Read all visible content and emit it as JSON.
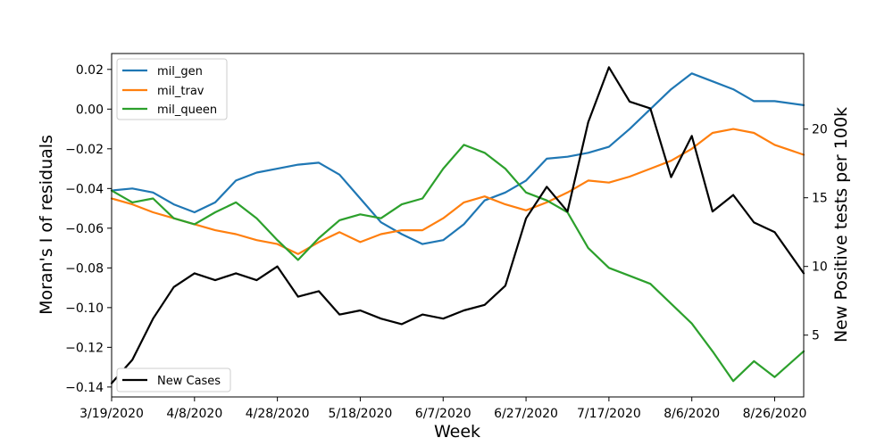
{
  "chart_data": {
    "type": "line",
    "xlabel": "Week",
    "ylabel_left": "Moran's I of residuals",
    "ylabel_right": "New Positive tests per 100k",
    "x_start_date": "2020-03-19",
    "x_end_date": "2020-09-02",
    "x_tick_labels": [
      "3/19/2020",
      "4/8/2020",
      "4/28/2020",
      "5/18/2020",
      "6/7/2020",
      "6/27/2020",
      "7/17/2020",
      "8/6/2020",
      "8/26/2020"
    ],
    "ylim_left": [
      -0.145,
      0.028
    ],
    "y_ticks_left": [
      0.02,
      0.0,
      -0.02,
      -0.04,
      -0.06,
      -0.08,
      -0.1,
      -0.12,
      -0.14
    ],
    "y_tick_labels_left": [
      "0.02",
      "0.00",
      "−0.02",
      "−0.04",
      "−0.06",
      "−0.08",
      "−0.10",
      "−0.12",
      "−0.14"
    ],
    "ylim_right": [
      0.5,
      25.5
    ],
    "y_ticks_right": [
      5,
      10,
      15,
      20
    ],
    "y_tick_labels_right": [
      "5",
      "10",
      "15",
      "20"
    ],
    "legend_top_left": {
      "position": "top-left",
      "entries": [
        "mil_gen",
        "mil_trav",
        "mil_queen"
      ]
    },
    "legend_bottom_left": {
      "position": "bottom-left",
      "entries": [
        "New Cases"
      ]
    },
    "grid": false,
    "colors": {
      "mil_gen": "#1f77b4",
      "mil_trav": "#ff7f0e",
      "mil_queen": "#2ca02c",
      "New Cases": "#000000"
    },
    "series": [
      {
        "name": "mil_gen",
        "axis": "left",
        "points": [
          [
            "2020-03-19",
            -0.041
          ],
          [
            "2020-03-24",
            -0.04
          ],
          [
            "2020-03-29",
            -0.042
          ],
          [
            "2020-04-03",
            -0.048
          ],
          [
            "2020-04-08",
            -0.052
          ],
          [
            "2020-04-13",
            -0.047
          ],
          [
            "2020-04-18",
            -0.036
          ],
          [
            "2020-04-23",
            -0.032
          ],
          [
            "2020-04-28",
            -0.03
          ],
          [
            "2020-05-03",
            -0.028
          ],
          [
            "2020-05-08",
            -0.027
          ],
          [
            "2020-05-13",
            -0.033
          ],
          [
            "2020-05-18",
            -0.045
          ],
          [
            "2020-05-23",
            -0.057
          ],
          [
            "2020-05-28",
            -0.063
          ],
          [
            "2020-06-02",
            -0.068
          ],
          [
            "2020-06-07",
            -0.066
          ],
          [
            "2020-06-12",
            -0.058
          ],
          [
            "2020-06-17",
            -0.046
          ],
          [
            "2020-06-22",
            -0.042
          ],
          [
            "2020-06-27",
            -0.036
          ],
          [
            "2020-07-02",
            -0.025
          ],
          [
            "2020-07-07",
            -0.024
          ],
          [
            "2020-07-12",
            -0.022
          ],
          [
            "2020-07-17",
            -0.019
          ],
          [
            "2020-07-22",
            -0.01
          ],
          [
            "2020-07-27",
            0.0
          ],
          [
            "2020-08-01",
            0.01
          ],
          [
            "2020-08-06",
            0.018
          ],
          [
            "2020-08-11",
            0.014
          ],
          [
            "2020-08-16",
            0.01
          ],
          [
            "2020-08-21",
            0.004
          ],
          [
            "2020-08-26",
            0.004
          ],
          [
            "2020-09-02",
            0.002
          ]
        ]
      },
      {
        "name": "mil_trav",
        "axis": "left",
        "points": [
          [
            "2020-03-19",
            -0.045
          ],
          [
            "2020-03-24",
            -0.048
          ],
          [
            "2020-03-29",
            -0.052
          ],
          [
            "2020-04-03",
            -0.055
          ],
          [
            "2020-04-08",
            -0.058
          ],
          [
            "2020-04-13",
            -0.061
          ],
          [
            "2020-04-18",
            -0.063
          ],
          [
            "2020-04-23",
            -0.066
          ],
          [
            "2020-04-28",
            -0.068
          ],
          [
            "2020-05-03",
            -0.073
          ],
          [
            "2020-05-08",
            -0.067
          ],
          [
            "2020-05-13",
            -0.062
          ],
          [
            "2020-05-18",
            -0.067
          ],
          [
            "2020-05-23",
            -0.063
          ],
          [
            "2020-05-28",
            -0.061
          ],
          [
            "2020-06-02",
            -0.061
          ],
          [
            "2020-06-07",
            -0.055
          ],
          [
            "2020-06-12",
            -0.047
          ],
          [
            "2020-06-17",
            -0.044
          ],
          [
            "2020-06-22",
            -0.048
          ],
          [
            "2020-06-27",
            -0.051
          ],
          [
            "2020-07-02",
            -0.047
          ],
          [
            "2020-07-07",
            -0.042
          ],
          [
            "2020-07-12",
            -0.036
          ],
          [
            "2020-07-17",
            -0.037
          ],
          [
            "2020-07-22",
            -0.034
          ],
          [
            "2020-07-27",
            -0.03
          ],
          [
            "2020-08-01",
            -0.026
          ],
          [
            "2020-08-06",
            -0.02
          ],
          [
            "2020-08-11",
            -0.012
          ],
          [
            "2020-08-16",
            -0.01
          ],
          [
            "2020-08-21",
            -0.012
          ],
          [
            "2020-08-26",
            -0.018
          ],
          [
            "2020-09-02",
            -0.023
          ]
        ]
      },
      {
        "name": "mil_queen",
        "axis": "left",
        "points": [
          [
            "2020-03-19",
            -0.041
          ],
          [
            "2020-03-24",
            -0.047
          ],
          [
            "2020-03-29",
            -0.045
          ],
          [
            "2020-04-03",
            -0.055
          ],
          [
            "2020-04-08",
            -0.058
          ],
          [
            "2020-04-13",
            -0.052
          ],
          [
            "2020-04-18",
            -0.047
          ],
          [
            "2020-04-23",
            -0.055
          ],
          [
            "2020-04-28",
            -0.066
          ],
          [
            "2020-05-03",
            -0.076
          ],
          [
            "2020-05-08",
            -0.065
          ],
          [
            "2020-05-13",
            -0.056
          ],
          [
            "2020-05-18",
            -0.053
          ],
          [
            "2020-05-23",
            -0.055
          ],
          [
            "2020-05-28",
            -0.048
          ],
          [
            "2020-06-02",
            -0.045
          ],
          [
            "2020-06-07",
            -0.03
          ],
          [
            "2020-06-12",
            -0.018
          ],
          [
            "2020-06-17",
            -0.022
          ],
          [
            "2020-06-22",
            -0.03
          ],
          [
            "2020-06-27",
            -0.042
          ],
          [
            "2020-07-02",
            -0.046
          ],
          [
            "2020-07-07",
            -0.052
          ],
          [
            "2020-07-12",
            -0.07
          ],
          [
            "2020-07-17",
            -0.08
          ],
          [
            "2020-07-22",
            -0.084
          ],
          [
            "2020-07-27",
            -0.088
          ],
          [
            "2020-08-01",
            -0.098
          ],
          [
            "2020-08-06",
            -0.108
          ],
          [
            "2020-08-11",
            -0.122
          ],
          [
            "2020-08-16",
            -0.137
          ],
          [
            "2020-08-21",
            -0.127
          ],
          [
            "2020-08-26",
            -0.135
          ],
          [
            "2020-09-02",
            -0.122
          ]
        ]
      },
      {
        "name": "New Cases",
        "axis": "right",
        "points": [
          [
            "2020-03-19",
            1.5
          ],
          [
            "2020-03-24",
            3.2
          ],
          [
            "2020-03-29",
            6.2
          ],
          [
            "2020-04-03",
            8.5
          ],
          [
            "2020-04-08",
            9.5
          ],
          [
            "2020-04-13",
            9.0
          ],
          [
            "2020-04-18",
            9.5
          ],
          [
            "2020-04-23",
            9.0
          ],
          [
            "2020-04-28",
            10.0
          ],
          [
            "2020-05-03",
            7.8
          ],
          [
            "2020-05-08",
            8.2
          ],
          [
            "2020-05-13",
            6.5
          ],
          [
            "2020-05-18",
            6.8
          ],
          [
            "2020-05-23",
            6.2
          ],
          [
            "2020-05-28",
            5.8
          ],
          [
            "2020-06-02",
            6.5
          ],
          [
            "2020-06-07",
            6.2
          ],
          [
            "2020-06-12",
            6.8
          ],
          [
            "2020-06-17",
            7.2
          ],
          [
            "2020-06-22",
            8.6
          ],
          [
            "2020-06-27",
            13.5
          ],
          [
            "2020-07-02",
            15.8
          ],
          [
            "2020-07-07",
            14.0
          ],
          [
            "2020-07-12",
            20.5
          ],
          [
            "2020-07-17",
            24.5
          ],
          [
            "2020-07-22",
            22.0
          ],
          [
            "2020-07-27",
            21.5
          ],
          [
            "2020-08-01",
            16.5
          ],
          [
            "2020-08-06",
            19.5
          ],
          [
            "2020-08-11",
            14.0
          ],
          [
            "2020-08-16",
            15.2
          ],
          [
            "2020-08-21",
            13.2
          ],
          [
            "2020-08-26",
            12.5
          ],
          [
            "2020-09-02",
            9.5
          ]
        ]
      }
    ]
  }
}
